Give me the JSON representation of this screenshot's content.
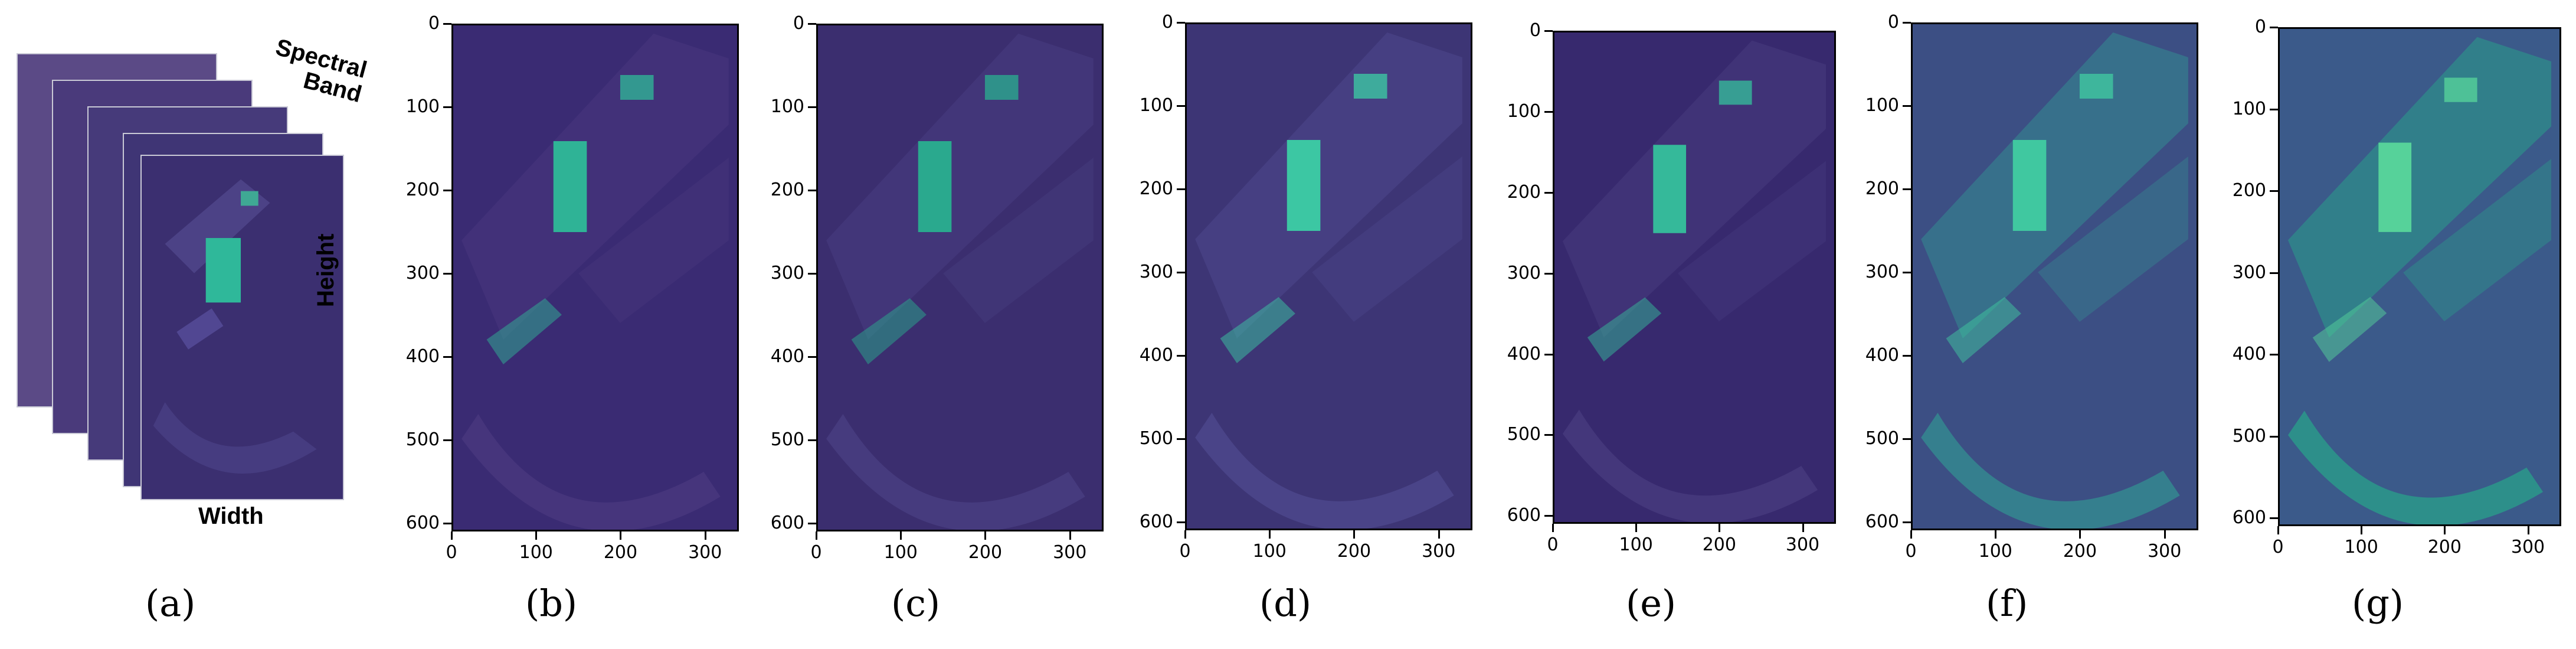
{
  "figure": {
    "panel_a": {
      "caption": "(a)",
      "labels": {
        "spectral_band": "Spectral\nBand",
        "height": "Height",
        "width": "Width"
      }
    },
    "panels": [
      {
        "caption": "(b)",
        "tone": "noisy"
      },
      {
        "caption": "(c)",
        "tone": "dark"
      },
      {
        "caption": "(d)",
        "tone": "medium"
      },
      {
        "caption": "(e)",
        "tone": "dark2"
      },
      {
        "caption": "(f)",
        "tone": "teal"
      },
      {
        "caption": "(g)",
        "tone": "green"
      }
    ],
    "y_ticks": [
      "0",
      "100",
      "200",
      "300",
      "400",
      "500",
      "600"
    ],
    "x_ticks": [
      "0",
      "100",
      "200",
      "300"
    ]
  }
}
